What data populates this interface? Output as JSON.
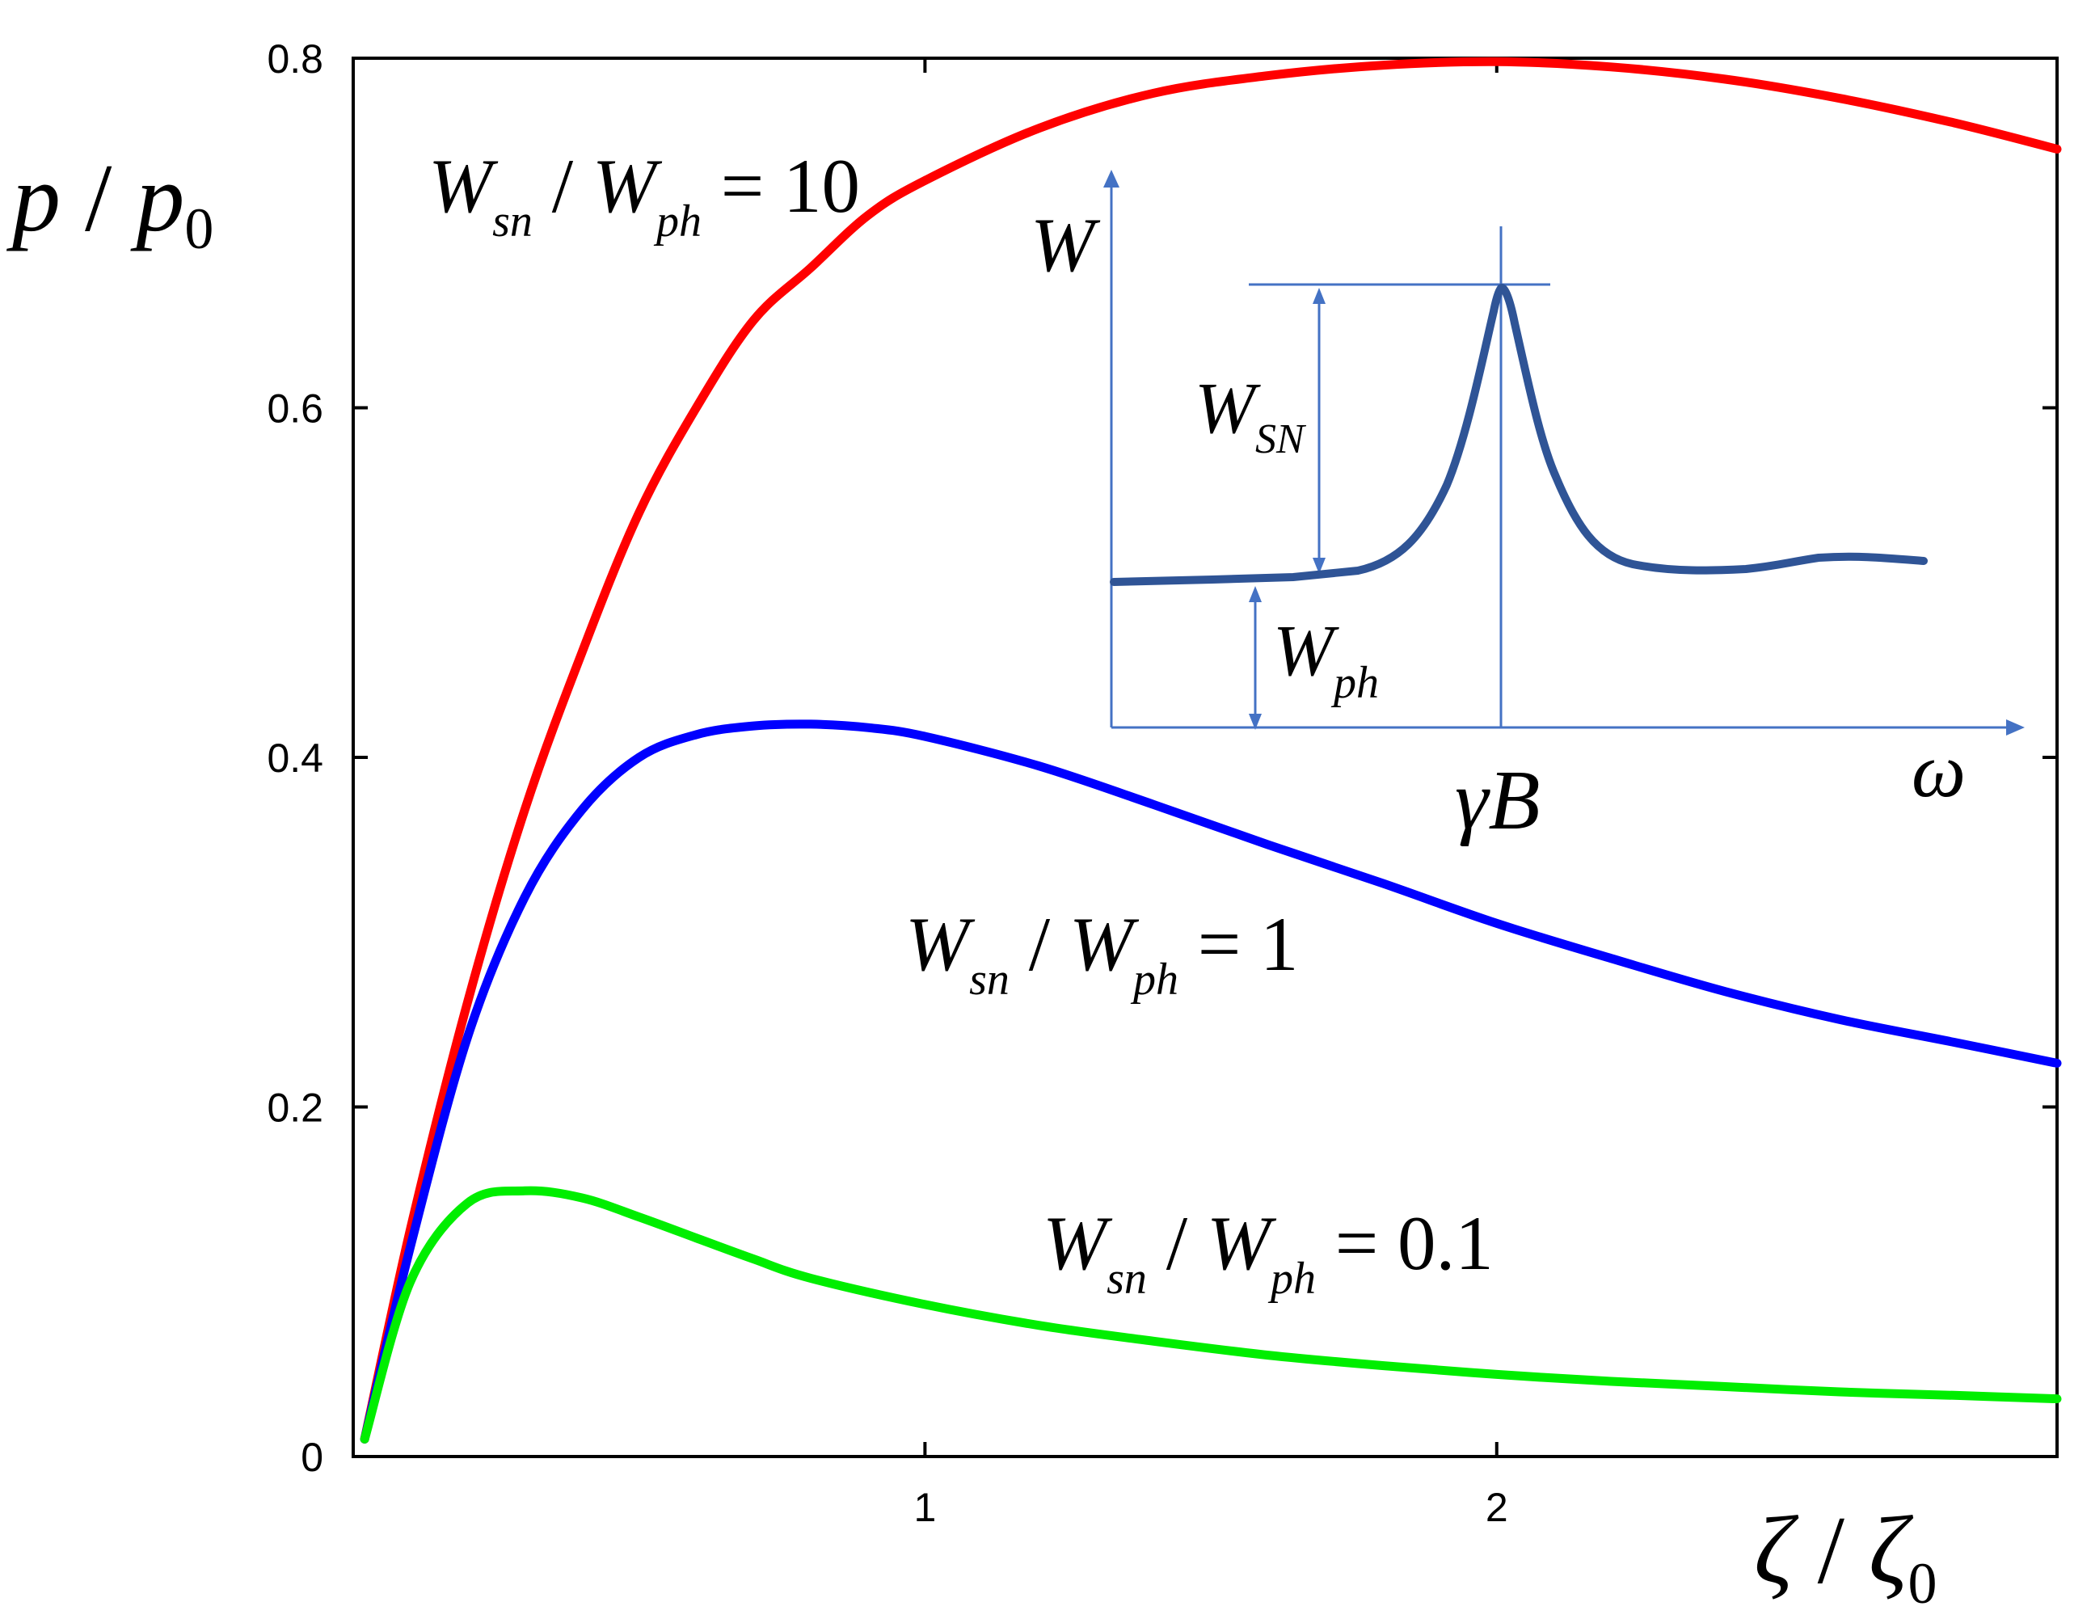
{
  "chart_data": {
    "type": "line",
    "ylabel": {
      "main": "p",
      "slash": " / ",
      "main2": "p",
      "sub": "0"
    },
    "xlabel": {
      "main": "ζ",
      "slash": " / ",
      "main2": "ζ",
      "sub": "0"
    },
    "xlim": [
      0,
      2.98
    ],
    "ylim": [
      0,
      0.8
    ],
    "x_ticks": [
      {
        "value": 1,
        "label": "1"
      },
      {
        "value": 2,
        "label": "2"
      }
    ],
    "y_ticks": [
      {
        "value": 0,
        "label": "0"
      },
      {
        "value": 0.2,
        "label": "0.2"
      },
      {
        "value": 0.4,
        "label": "0.4"
      },
      {
        "value": 0.6,
        "label": "0.6"
      },
      {
        "value": 0.8,
        "label": "0.8"
      }
    ],
    "grid": false,
    "series": [
      {
        "name_parts": {
          "a": "W",
          "a_sub": "sn",
          "slash": " / ",
          "b": "W",
          "b_sub": "ph",
          "eq": " = 10"
        },
        "color": "#ff0000",
        "x": [
          0.02,
          0.1,
          0.2,
          0.3,
          0.4,
          0.5,
          0.6,
          0.7,
          0.8,
          0.9,
          1.0,
          1.2,
          1.4,
          1.6,
          1.8,
          2.0,
          2.2,
          2.4,
          2.6,
          2.8,
          2.98
        ],
        "y": [
          0.01,
          0.13,
          0.26,
          0.37,
          0.46,
          0.54,
          0.6,
          0.65,
          0.68,
          0.71,
          0.73,
          0.76,
          0.78,
          0.79,
          0.796,
          0.798,
          0.795,
          0.788,
          0.777,
          0.763,
          0.748
        ]
      },
      {
        "name_parts": {
          "a": "W",
          "a_sub": "sn",
          "slash": " / ",
          "b": "W",
          "b_sub": "ph",
          "eq": " = 1"
        },
        "color": "#0000ff",
        "x": [
          0.02,
          0.1,
          0.2,
          0.3,
          0.4,
          0.5,
          0.6,
          0.7,
          0.8,
          0.9,
          1.0,
          1.2,
          1.4,
          1.6,
          1.8,
          2.0,
          2.2,
          2.4,
          2.6,
          2.8,
          2.98
        ],
        "y": [
          0.01,
          0.12,
          0.24,
          0.32,
          0.37,
          0.4,
          0.413,
          0.418,
          0.419,
          0.417,
          0.412,
          0.395,
          0.373,
          0.35,
          0.328,
          0.305,
          0.285,
          0.266,
          0.25,
          0.237,
          0.225
        ]
      },
      {
        "name_parts": {
          "a": "W",
          "a_sub": "sn",
          "slash": " / ",
          "b": "W",
          "b_sub": "ph",
          "eq": " = 0.1"
        },
        "color": "#00ee00",
        "x": [
          0.02,
          0.1,
          0.2,
          0.3,
          0.4,
          0.5,
          0.6,
          0.7,
          0.8,
          1.0,
          1.2,
          1.4,
          1.6,
          1.8,
          2.0,
          2.2,
          2.4,
          2.6,
          2.8,
          2.98
        ],
        "y": [
          0.01,
          0.1,
          0.145,
          0.152,
          0.148,
          0.137,
          0.125,
          0.113,
          0.102,
          0.087,
          0.075,
          0.066,
          0.058,
          0.052,
          0.047,
          0.043,
          0.04,
          0.037,
          0.035,
          0.033
        ]
      }
    ],
    "inset": {
      "type": "diagram",
      "y_axis_label": "W",
      "x_axis_label": "ω",
      "peak_label": {
        "main": "γ",
        "main2": "B"
      },
      "peak_height_label": {
        "main": "W",
        "sub": "SN"
      },
      "baseline_label": {
        "main": "W",
        "sub": "ph"
      },
      "curve_color": "#2f5496",
      "axis_color": "#4472c4"
    }
  }
}
